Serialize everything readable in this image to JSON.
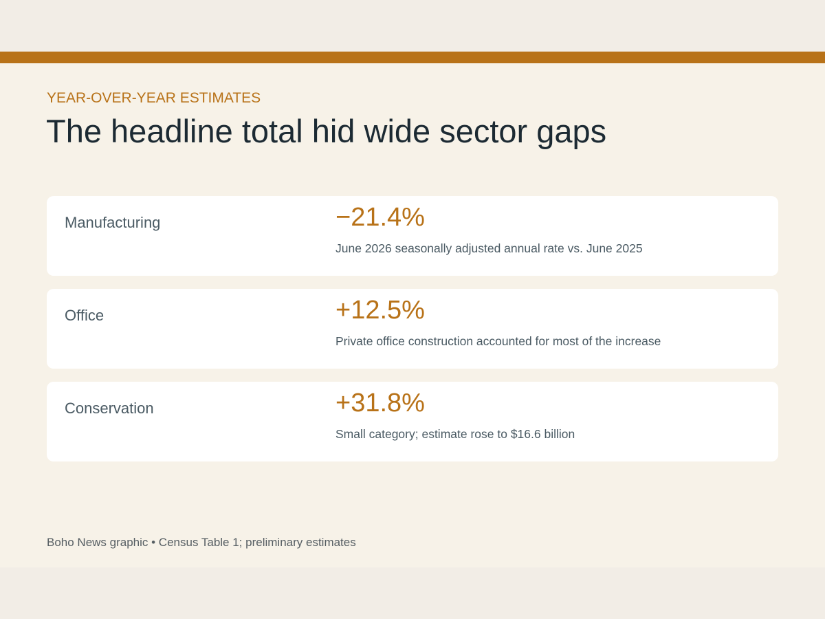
{
  "header": {
    "kicker": "YEAR-OVER-YEAR ESTIMATES",
    "title": "The headline total hid wide sector gaps"
  },
  "rows": [
    {
      "label": "Manufacturing",
      "value": "−21.4%",
      "note": "June 2026 seasonally adjusted annual rate vs. June 2025"
    },
    {
      "label": "Office",
      "value": "+12.5%",
      "note": "Private office construction accounted for most of the increase"
    },
    {
      "label": "Conservation",
      "value": "+31.8%",
      "note": "Small category; estimate rose to $16.6 billion"
    }
  ],
  "footer": {
    "source": "Boho News graphic • Census Table 1; preliminary estimates"
  }
}
